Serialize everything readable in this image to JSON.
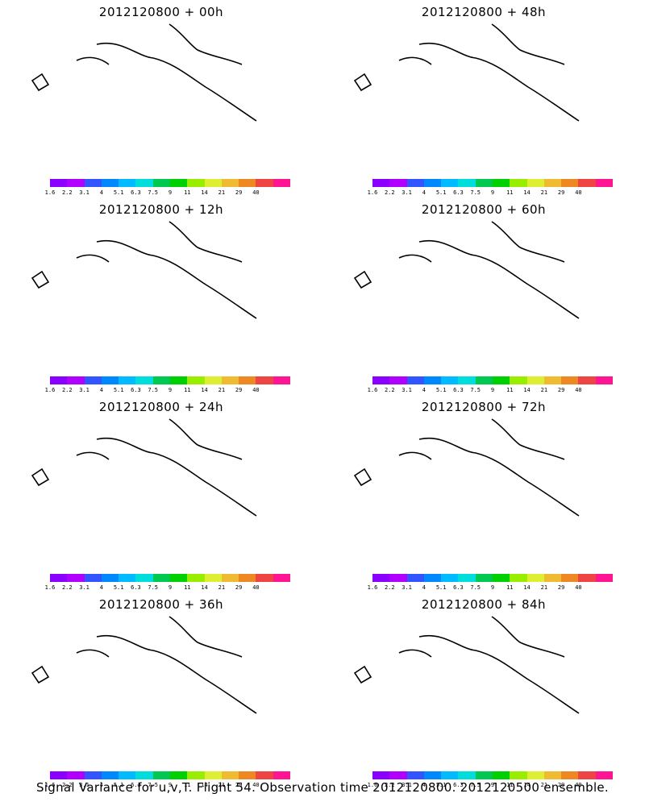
{
  "panels": [
    {
      "title": "2012120800 + 00h",
      "level": 0
    },
    {
      "title": "2012120800 + 48h",
      "level": 4
    },
    {
      "title": "2012120800 + 12h",
      "level": 1
    },
    {
      "title": "2012120800 + 60h",
      "level": 5
    },
    {
      "title": "2012120800 + 24h",
      "level": 2
    },
    {
      "title": "2012120800 + 72h",
      "level": 6
    },
    {
      "title": "2012120800 + 36h",
      "level": 3
    },
    {
      "title": "2012120800 + 84h",
      "level": 7
    }
  ],
  "colorbar": {
    "ticks": [
      "1.6",
      "2.2",
      "3.1",
      "4",
      "5.1",
      "6.3",
      "7.5",
      "9",
      "11",
      "14",
      "21",
      "29",
      "40"
    ],
    "colors": [
      "#8a00ff",
      "#b000ff",
      "#3355ff",
      "#0088ff",
      "#00bbff",
      "#00dddd",
      "#00c850",
      "#00d000",
      "#99ee00",
      "#ddee33",
      "#eebb33",
      "#ee8822",
      "#ee4444",
      "#ff1493"
    ]
  },
  "footer": "Signal Variance for u,v,T. Flight 54. Observation time 2012120800. 2012120500 ensemble."
}
